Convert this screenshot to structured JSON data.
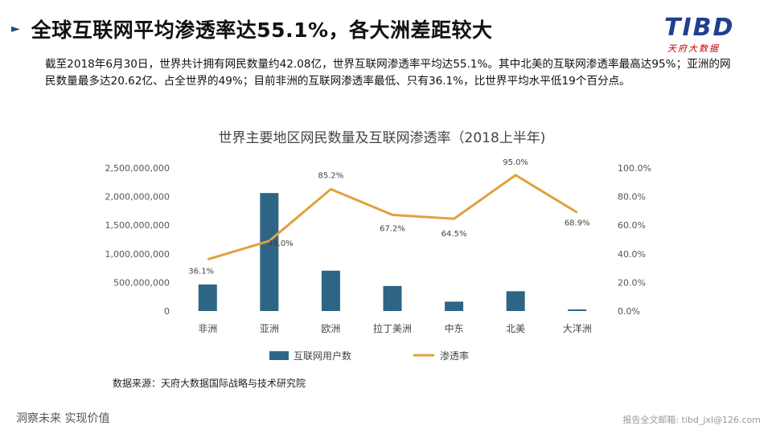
{
  "header": {
    "title": "全球互联网平均渗透率达55.1%，各大洲差距较大",
    "logo_text": "TIBD",
    "logo_subtext": "天府大数据"
  },
  "description": "截至2018年6月30日，世界共计拥有网民数量约42.08亿，世界互联网渗透率平均达55.1%。其中北美的互联网渗透率最高达95%；亚洲的网民数量最多达20.62亿、占全世界的49%；目前非洲的互联网渗透率最低、只有36.1%，比世界平均水平低19个百分点。",
  "chart_data": {
    "type": "bar",
    "title": "世界主要地区网民数量及互联网渗透率（2018上半年)",
    "categories": [
      "非洲",
      "亚洲",
      "欧洲",
      "拉丁美洲",
      "中东",
      "北美",
      "大洋洲"
    ],
    "series": [
      {
        "name": "互联网用户数",
        "type": "bar",
        "axis": "left",
        "color": "#2e6584",
        "values": [
          464000000,
          2062000000,
          705000000,
          438000000,
          164000000,
          346000000,
          28000000
        ]
      },
      {
        "name": "渗透率",
        "type": "line",
        "axis": "right",
        "color": "#e0a23c",
        "values": [
          36.1,
          49.0,
          85.2,
          67.2,
          64.5,
          95.0,
          68.9
        ],
        "labels": [
          "36.1%",
          "49.0%",
          "85.2%",
          "67.2%",
          "64.5%",
          "95.0%",
          "68.9%"
        ]
      }
    ],
    "y_left": {
      "min": 0,
      "max": 2500000000,
      "ticks": [
        0,
        500000000,
        1000000000,
        1500000000,
        2000000000,
        2500000000
      ],
      "tick_labels": [
        "0",
        "500,000,000",
        "1,000,000,000",
        "1,500,000,000",
        "2,000,000,000",
        "2,500,000,000"
      ]
    },
    "y_right": {
      "min": 0,
      "max": 100,
      "ticks": [
        0,
        20,
        40,
        60,
        80,
        100
      ],
      "tick_labels": [
        "0.0%",
        "20.0%",
        "40.0%",
        "60.0%",
        "80.0%",
        "100.0%"
      ]
    },
    "grid": false,
    "legend_position": "bottom"
  },
  "source": "数据来源：天府大数据国际战略与技术研究院",
  "footer": {
    "slogan": "洞察未来 实现价值",
    "contact": "报告全文邮箱: tibd_jxl@126.com"
  }
}
